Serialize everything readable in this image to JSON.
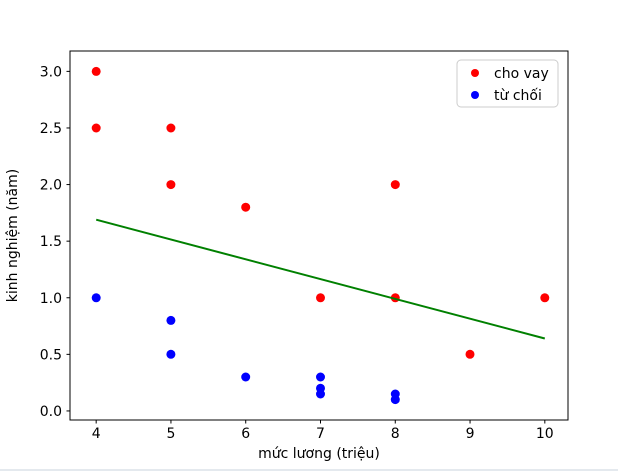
{
  "figure": {
    "background": "#ffffff",
    "bottom_strip_color": "#e4e9ee"
  },
  "chart_data": {
    "type": "scatter",
    "title": "",
    "xlabel": "mức lương (triệu)",
    "ylabel": "kinh nghiệm (năm)",
    "xlim": [
      3.65,
      10.31
    ],
    "ylim": [
      -0.08,
      3.18
    ],
    "xticks": [
      "4",
      "5",
      "6",
      "7",
      "8",
      "9",
      "10"
    ],
    "xtick_values": [
      4,
      5,
      6,
      7,
      8,
      9,
      10
    ],
    "yticks": [
      "0.0",
      "0.5",
      "1.0",
      "1.5",
      "2.0",
      "2.5",
      "3.0"
    ],
    "ytick_values": [
      0.0,
      0.5,
      1.0,
      1.5,
      2.0,
      2.5,
      3.0
    ],
    "grid": false,
    "legend_position": "upper right",
    "axis_color": "#000000",
    "text_color": "#000000",
    "legend_border_color": "#cccccc",
    "series": [
      {
        "name": "cho vay",
        "color": "#ff0000",
        "marker": "circle",
        "points": [
          [
            4,
            3.0
          ],
          [
            4,
            2.5
          ],
          [
            5,
            2.5
          ],
          [
            5,
            2.0
          ],
          [
            6,
            1.8
          ],
          [
            7,
            1.0
          ],
          [
            8,
            2.0
          ],
          [
            8,
            1.0
          ],
          [
            9,
            0.5
          ],
          [
            10,
            1.0
          ]
        ]
      },
      {
        "name": "từ chối",
        "color": "#0000ff",
        "marker": "circle",
        "points": [
          [
            4,
            1.0
          ],
          [
            5,
            0.8
          ],
          [
            5,
            0.5
          ],
          [
            6,
            0.3
          ],
          [
            7,
            0.3
          ],
          [
            7,
            0.2
          ],
          [
            7,
            0.15
          ],
          [
            8,
            0.15
          ],
          [
            8,
            0.1
          ]
        ]
      }
    ],
    "line": {
      "name": "trend-line",
      "color": "#008000",
      "width": 2,
      "from": [
        4,
        1.69
      ],
      "to": [
        10,
        0.64
      ]
    }
  }
}
